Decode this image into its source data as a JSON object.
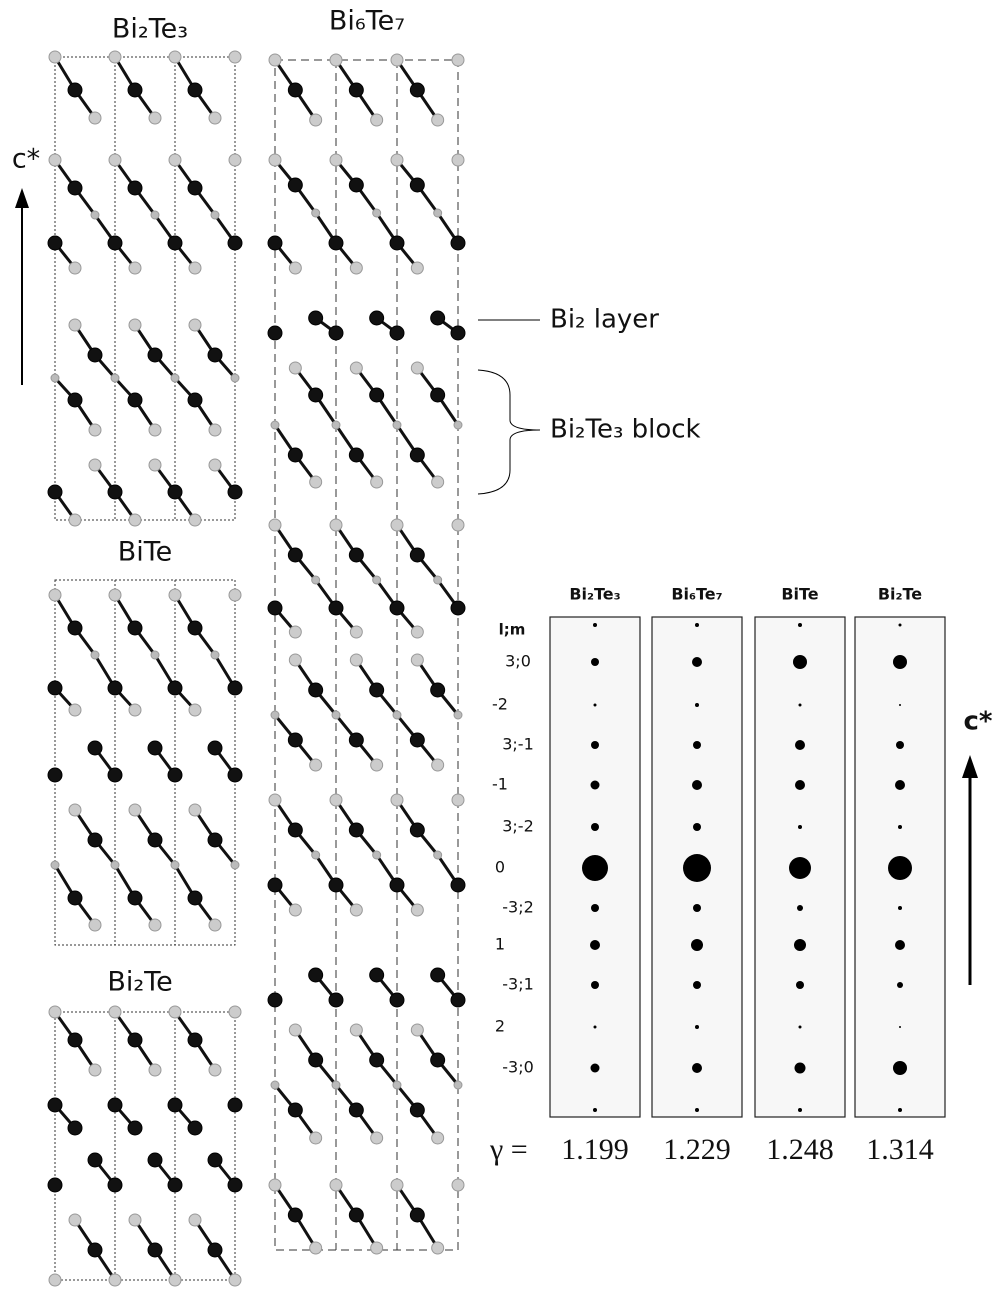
{
  "structures": [
    {
      "label": "Bi₂Te₃"
    },
    {
      "label": "Bi₆Te₇"
    },
    {
      "label": "BiTe"
    },
    {
      "label": "Bi₂Te"
    }
  ],
  "structure_axis_label": "c*",
  "annotations": [
    "Bi₂ layer",
    "Bi₂Te₃ block"
  ],
  "diffraction": {
    "panels": [
      {
        "label": "Bi₂Te₃",
        "gamma": 1.199
      },
      {
        "label": "Bi₆Te₇",
        "gamma": 1.229
      },
      {
        "label": "BiTe",
        "gamma": 1.248
      },
      {
        "label": "Bi₂Te",
        "gamma": 1.314
      }
    ],
    "row_header": "l;m",
    "rows": [
      "3;0",
      "-2",
      "3;-1",
      "-1",
      "3;-2",
      "0",
      "-3;2",
      "1",
      "-3;1",
      "2",
      "-3;0"
    ],
    "axis_label": "c*",
    "gamma_label": "γ ="
  }
}
